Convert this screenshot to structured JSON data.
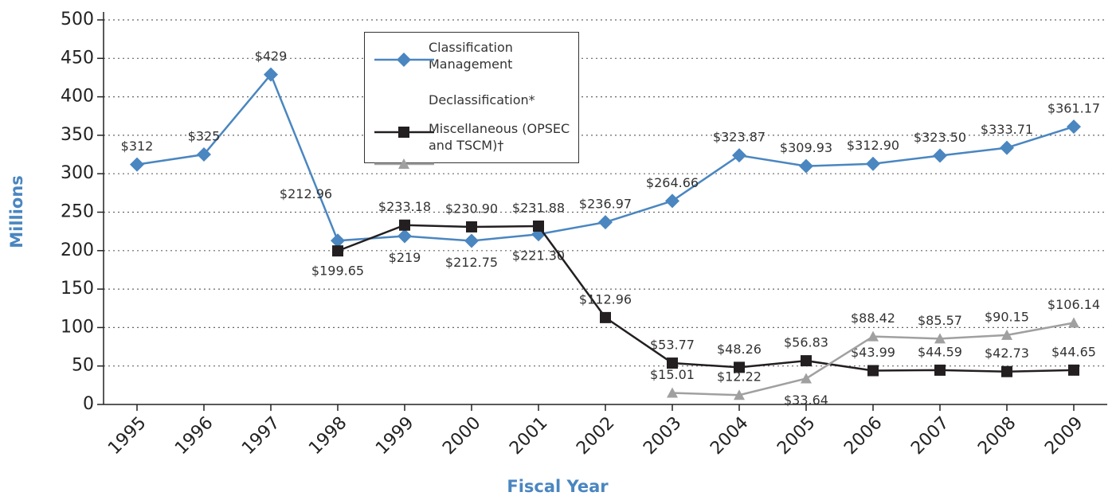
{
  "chart_data": {
    "type": "line",
    "x_label": "Fiscal Year",
    "y_label": "Millions",
    "categories": [
      "1995",
      "1996",
      "1997",
      "1998",
      "1999",
      "2000",
      "2001",
      "2002",
      "2003",
      "2004",
      "2005",
      "2006",
      "2007",
      "2008",
      "2009"
    ],
    "series": [
      {
        "name": "Classification Management",
        "color": "#4a86c0",
        "marker": "diamond",
        "values": [
          312,
          325,
          429,
          212.96,
          219,
          212.75,
          221.3,
          236.97,
          264.66,
          323.87,
          309.93,
          312.9,
          323.5,
          333.71,
          361.17
        ],
        "value_labels": [
          "$312",
          "$325",
          "$429",
          "$212.96",
          "$219",
          "$212.75",
          "$221.30",
          "$236.97",
          "$264.66",
          "$323.87",
          "$309.93",
          "$312.90",
          "$323.50",
          "$333.71",
          "$361.17"
        ]
      },
      {
        "name": "Declassification*",
        "color": "#231f20",
        "marker": "square",
        "values": [
          null,
          null,
          null,
          199.65,
          233.18,
          230.9,
          231.88,
          112.96,
          53.77,
          48.26,
          56.83,
          43.99,
          44.59,
          42.73,
          44.65
        ],
        "value_labels": [
          null,
          null,
          null,
          "$199.65",
          "$233.18",
          "$230.90",
          "$231.88",
          "$112.96",
          "$53.77",
          "$48.26",
          "$56.83",
          "$43.99",
          "$44.59",
          "$42.73",
          "$44.65"
        ]
      },
      {
        "name": "Miscellaneous (OPSEC and TSCM)†",
        "color": "#a0a0a0",
        "marker": "triangle",
        "values": [
          null,
          null,
          null,
          null,
          null,
          null,
          null,
          null,
          15.01,
          12.22,
          33.64,
          88.42,
          85.57,
          90.15,
          106.14
        ],
        "value_labels": [
          null,
          null,
          null,
          null,
          null,
          null,
          null,
          null,
          "$15.01",
          "$12.22",
          "$33.64",
          "$88.42",
          "$85.57",
          "$90.15",
          "$106.14"
        ]
      }
    ],
    "ylim": [
      0,
      500
    ],
    "yticks": [
      0,
      50,
      100,
      150,
      200,
      250,
      300,
      350,
      400,
      450,
      500
    ],
    "grid": true
  }
}
